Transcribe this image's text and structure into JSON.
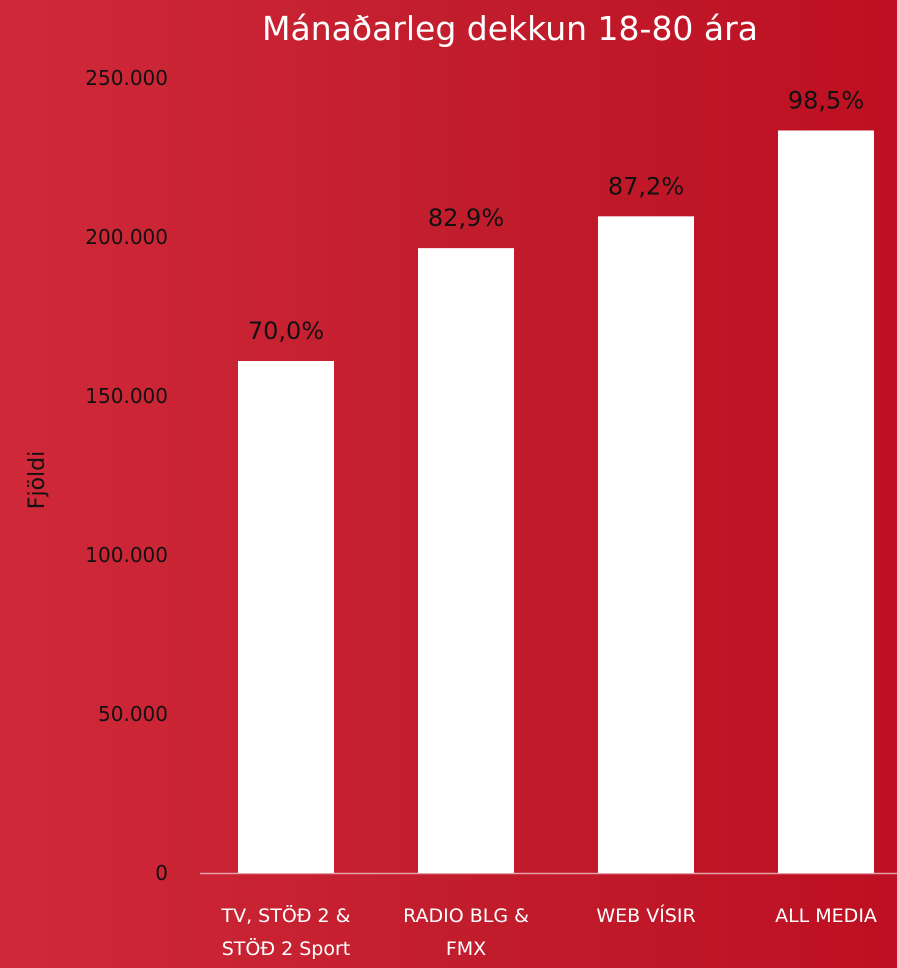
{
  "chart_data": {
    "type": "bar",
    "title": "Mánaðarleg dekkun 18-80 ára",
    "ylabel": "Fjöldi",
    "xlabel": "",
    "ylim": [
      0,
      250000
    ],
    "yticks": [
      0,
      50000,
      100000,
      150000,
      200000,
      250000
    ],
    "ytick_labels": [
      "0",
      "50.000",
      "100.000",
      "150.000",
      "200.000",
      "250.000"
    ],
    "categories": [
      [
        "TV, STÖÐ 2 &",
        "STÖÐ 2 Sport"
      ],
      [
        "RADIO BLG &",
        "FMX"
      ],
      [
        "WEB VÍSIR"
      ],
      [
        "ALL MEDIA"
      ]
    ],
    "values": [
      161000,
      196500,
      206500,
      233500
    ],
    "data_labels": [
      "70,0%",
      "82,9%",
      "87,2%",
      "98,5%"
    ],
    "grid": false,
    "legend": "none",
    "bar_color": "#ffffff",
    "text_color": "#111111",
    "title_color": "#ffffff",
    "category_label_color": "#ffffff",
    "background": [
      "#d02a3a",
      "#bd1022"
    ]
  }
}
